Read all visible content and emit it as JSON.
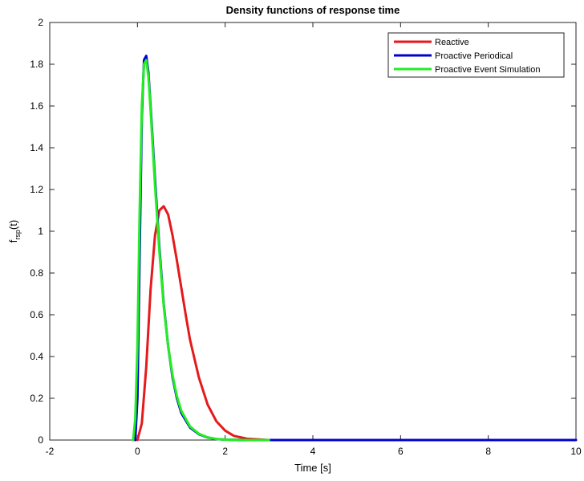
{
  "chart_data": {
    "type": "line",
    "title": "Density functions of response time",
    "xlabel": "Time [s]",
    "ylabel_main": "f",
    "ylabel_sub": "rsp",
    "ylabel_suffix": "(t)",
    "xlim": [
      -2,
      10
    ],
    "ylim": [
      0,
      2
    ],
    "xticks": [
      -2,
      0,
      2,
      4,
      6,
      8,
      10
    ],
    "yticks": [
      0,
      0.2,
      0.4,
      0.6,
      0.8,
      1,
      1.2,
      1.4,
      1.6,
      1.8,
      2
    ],
    "xtick_labels": [
      "-2",
      "0",
      "2",
      "4",
      "6",
      "8",
      "10"
    ],
    "ytick_labels": [
      "0",
      "0.2",
      "0.4",
      "0.6",
      "0.8",
      "1",
      "1.2",
      "1.4",
      "1.6",
      "1.8",
      "2"
    ],
    "grid": false,
    "legend_position": "top-right",
    "series": [
      {
        "name": "Reactive",
        "color": "#e41a1c",
        "x": [
          0.0,
          0.1,
          0.2,
          0.3,
          0.4,
          0.5,
          0.6,
          0.7,
          0.8,
          0.9,
          1.0,
          1.1,
          1.2,
          1.4,
          1.6,
          1.8,
          2.0,
          2.2,
          2.5,
          3.0
        ],
        "y": [
          0.0,
          0.08,
          0.35,
          0.72,
          0.98,
          1.1,
          1.12,
          1.08,
          0.98,
          0.86,
          0.73,
          0.6,
          0.48,
          0.3,
          0.17,
          0.09,
          0.045,
          0.02,
          0.006,
          0.0
        ]
      },
      {
        "name": "Proactive Periodical",
        "color": "#0000cc",
        "x": [
          -0.05,
          0.0,
          0.05,
          0.1,
          0.15,
          0.2,
          0.25,
          0.3,
          0.4,
          0.5,
          0.6,
          0.7,
          0.8,
          0.9,
          1.0,
          1.2,
          1.4,
          1.6,
          1.8,
          2.0,
          2.5,
          3.0,
          4.0,
          6.0,
          8.0,
          10.0
        ],
        "y": [
          0.0,
          0.2,
          0.9,
          1.55,
          1.82,
          1.84,
          1.76,
          1.6,
          1.25,
          0.92,
          0.65,
          0.45,
          0.3,
          0.2,
          0.13,
          0.06,
          0.028,
          0.012,
          0.005,
          0.002,
          0.0,
          0.0,
          0.0,
          0.0,
          0.0,
          0.0
        ]
      },
      {
        "name": "Proactive Event Simulation",
        "color": "#22ee22",
        "x": [
          -0.1,
          -0.05,
          0.0,
          0.05,
          0.1,
          0.15,
          0.2,
          0.25,
          0.3,
          0.4,
          0.5,
          0.6,
          0.7,
          0.8,
          0.9,
          1.0,
          1.2,
          1.4,
          1.6,
          1.8,
          2.0,
          2.5,
          3.0
        ],
        "y": [
          0.0,
          0.1,
          0.45,
          1.1,
          1.6,
          1.8,
          1.82,
          1.74,
          1.58,
          1.22,
          0.9,
          0.64,
          0.45,
          0.31,
          0.21,
          0.14,
          0.065,
          0.03,
          0.013,
          0.005,
          0.002,
          0.0,
          0.0
        ]
      }
    ]
  }
}
